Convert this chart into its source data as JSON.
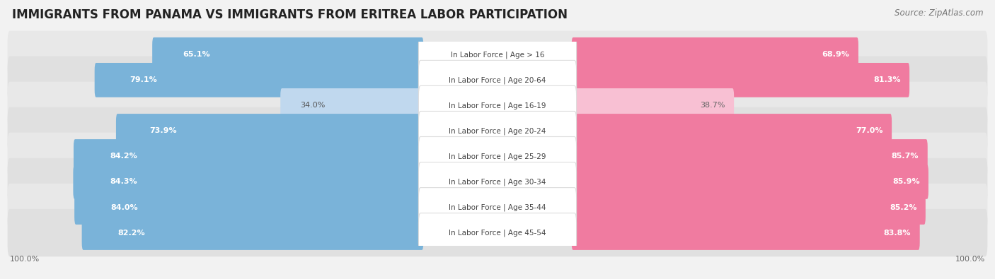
{
  "title": "IMMIGRANTS FROM PANAMA VS IMMIGRANTS FROM ERITREA LABOR PARTICIPATION",
  "source": "Source: ZipAtlas.com",
  "categories": [
    "In Labor Force | Age > 16",
    "In Labor Force | Age 20-64",
    "In Labor Force | Age 16-19",
    "In Labor Force | Age 20-24",
    "In Labor Force | Age 25-29",
    "In Labor Force | Age 30-34",
    "In Labor Force | Age 35-44",
    "In Labor Force | Age 45-54"
  ],
  "panama_values": [
    65.1,
    79.1,
    34.0,
    73.9,
    84.2,
    84.3,
    84.0,
    82.2
  ],
  "eritrea_values": [
    68.9,
    81.3,
    38.7,
    77.0,
    85.7,
    85.9,
    85.2,
    83.8
  ],
  "panama_color": "#7ab3d9",
  "eritrea_color": "#f07ba0",
  "panama_color_light": "#c0d8ee",
  "eritrea_color_light": "#f8c0d3",
  "panama_label": "Immigrants from Panama",
  "eritrea_label": "Immigrants from Eritrea",
  "bg_color": "#f2f2f2",
  "row_bg_even": "#ebebeb",
  "row_bg_odd": "#e4e4e4",
  "title_fontsize": 12,
  "source_fontsize": 8.5,
  "bar_label_fontsize": 8,
  "cat_label_fontsize": 7.5,
  "legend_fontsize": 9,
  "axis_label_fontsize": 8
}
